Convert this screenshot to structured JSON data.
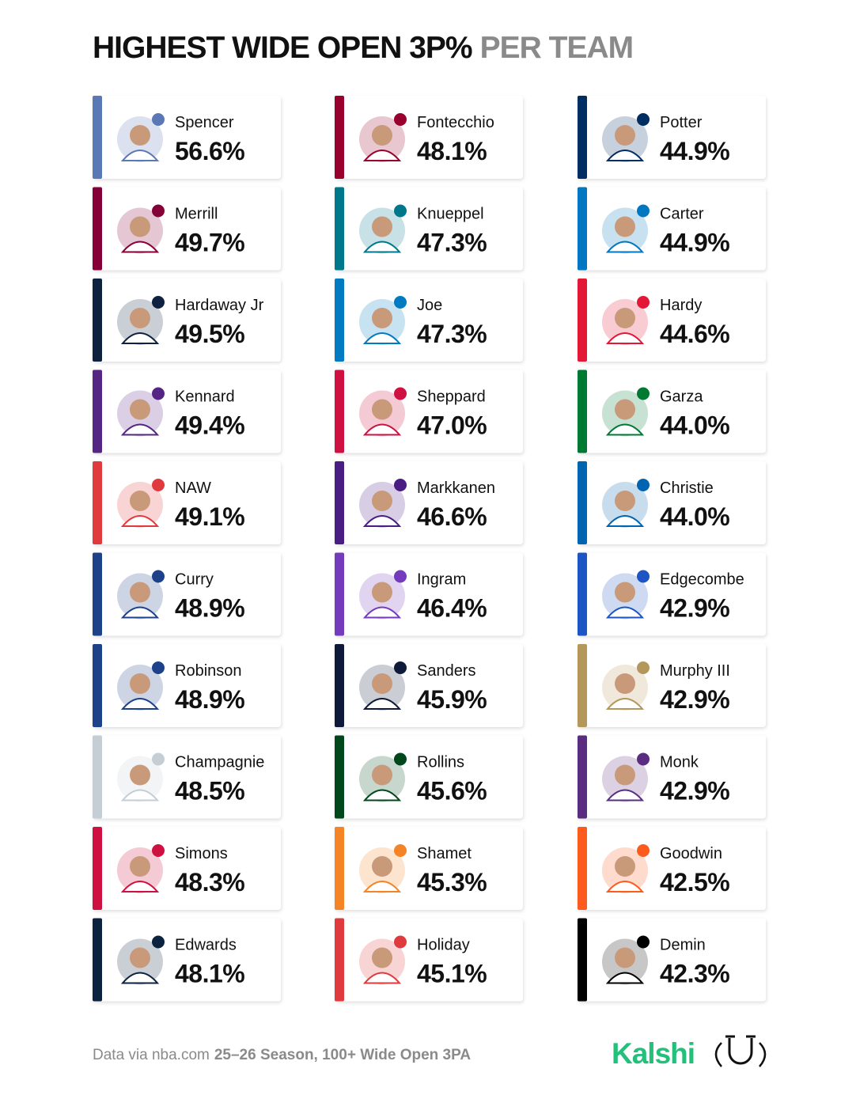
{
  "header": {
    "title_main": "HIGHEST WIDE OPEN 3P%",
    "title_accent": "PER TEAM"
  },
  "cards": [
    {
      "name": "Spencer",
      "value": "56.6%",
      "color": "#5b78b6"
    },
    {
      "name": "Merrill",
      "value": "49.7%",
      "color": "#860038"
    },
    {
      "name": "Hardaway Jr",
      "value": "49.5%",
      "color": "#0e2240"
    },
    {
      "name": "Kennard",
      "value": "49.4%",
      "color": "#552583"
    },
    {
      "name": "NAW",
      "value": "49.1%",
      "color": "#e03a3e"
    },
    {
      "name": "Curry",
      "value": "48.9%",
      "color": "#1d428a"
    },
    {
      "name": "Robinson",
      "value": "48.9%",
      "color": "#1d428a"
    },
    {
      "name": "Champagnie",
      "value": "48.5%",
      "color": "#c4ced4"
    },
    {
      "name": "Simons",
      "value": "48.3%",
      "color": "#ce1141"
    },
    {
      "name": "Edwards",
      "value": "48.1%",
      "color": "#0c2340"
    },
    {
      "name": "Fontecchio",
      "value": "48.1%",
      "color": "#98002e"
    },
    {
      "name": "Knueppel",
      "value": "47.3%",
      "color": "#00788c"
    },
    {
      "name": "Joe",
      "value": "47.3%",
      "color": "#007ac1"
    },
    {
      "name": "Sheppard",
      "value": "47.0%",
      "color": "#ce1141"
    },
    {
      "name": "Markkanen",
      "value": "46.6%",
      "color": "#4a1d82"
    },
    {
      "name": "Ingram",
      "value": "46.4%",
      "color": "#753bbd"
    },
    {
      "name": "Sanders",
      "value": "45.9%",
      "color": "#0f1a3a"
    },
    {
      "name": "Rollins",
      "value": "45.6%",
      "color": "#00471b"
    },
    {
      "name": "Shamet",
      "value": "45.3%",
      "color": "#f58426"
    },
    {
      "name": "Holiday",
      "value": "45.1%",
      "color": "#e03a3e"
    },
    {
      "name": "Potter",
      "value": "44.9%",
      "color": "#002d62"
    },
    {
      "name": "Carter",
      "value": "44.9%",
      "color": "#0077c0"
    },
    {
      "name": "Hardy",
      "value": "44.6%",
      "color": "#e31837"
    },
    {
      "name": "Garza",
      "value": "44.0%",
      "color": "#007a33"
    },
    {
      "name": "Christie",
      "value": "44.0%",
      "color": "#0064b1"
    },
    {
      "name": "Edgecombe",
      "value": "42.9%",
      "color": "#1d55c4"
    },
    {
      "name": "Murphy III",
      "value": "42.9%",
      "color": "#b4975a"
    },
    {
      "name": "Monk",
      "value": "42.9%",
      "color": "#5a2d81"
    },
    {
      "name": "Goodwin",
      "value": "42.5%",
      "color": "#fd5a1e"
    },
    {
      "name": "Demin",
      "value": "42.3%",
      "color": "#000000"
    }
  ],
  "footer": {
    "source": "Data via nba.com",
    "detail": "25–26 Season, 100+ Wide Open 3PA",
    "brand": "Kalshi"
  }
}
